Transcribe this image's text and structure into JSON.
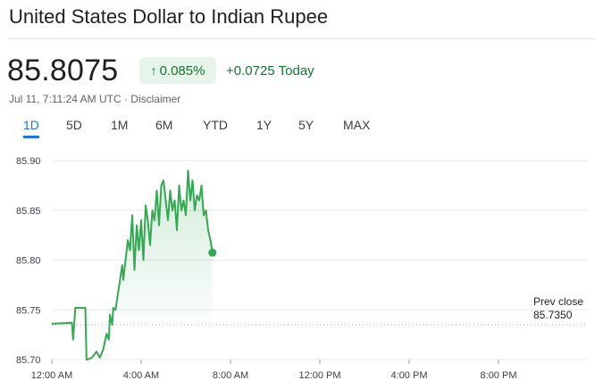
{
  "header": {
    "title": "United States Dollar to Indian Rupee"
  },
  "quote": {
    "price": "85.8075",
    "percent_change": "0.085%",
    "abs_change": "+0.0725",
    "period": "Today",
    "timestamp": "Jul 11, 7:11:24 AM UTC",
    "separator": " · ",
    "disclaimer": "Disclaimer"
  },
  "tabs": [
    {
      "label": "1D",
      "active": true
    },
    {
      "label": "5D",
      "active": false
    },
    {
      "label": "1M",
      "active": false
    },
    {
      "label": "6M",
      "active": false
    },
    {
      "label": "YTD",
      "active": false
    },
    {
      "label": "1Y",
      "active": false
    },
    {
      "label": "5Y",
      "active": false
    },
    {
      "label": "MAX",
      "active": false
    }
  ],
  "colors": {
    "up": "#137333",
    "line": "#34a853",
    "accent": "#1a73e8"
  },
  "icons": {
    "change_direction": "arrow-up-icon"
  },
  "chart_data": {
    "type": "line",
    "x_unit": "hours (UTC) since 12:00 AM",
    "xticks": [
      {
        "value": 0,
        "label": "12:00 AM"
      },
      {
        "value": 4,
        "label": "4:00 AM"
      },
      {
        "value": 8,
        "label": "8:00 AM"
      },
      {
        "value": 12,
        "label": "12:00 PM"
      },
      {
        "value": 16,
        "label": "4:00 PM"
      },
      {
        "value": 20,
        "label": "8:00 PM"
      }
    ],
    "xlim": [
      0,
      24
    ],
    "ylim": [
      85.7,
      85.9
    ],
    "yticks": [
      85.7,
      85.75,
      85.8,
      85.85,
      85.9
    ],
    "grid": true,
    "prev_close": {
      "label": "Prev close",
      "value": "85.7350",
      "numeric": 85.735
    },
    "series": {
      "x": [
        0,
        0.9,
        0.95,
        1.0,
        1.05,
        1.5,
        1.55,
        1.6,
        1.8,
        2.0,
        2.15,
        2.3,
        2.45,
        2.55,
        2.6,
        2.7,
        2.75,
        2.85,
        2.95,
        3.05,
        3.15,
        3.2,
        3.3,
        3.4,
        3.5,
        3.6,
        3.7,
        3.8,
        3.9,
        4.0,
        4.1,
        4.2,
        4.3,
        4.4,
        4.5,
        4.6,
        4.7,
        4.8,
        4.9,
        5.0,
        5.1,
        5.2,
        5.3,
        5.4,
        5.5,
        5.6,
        5.7,
        5.8,
        5.9,
        6.0,
        6.1,
        6.2,
        6.3,
        6.4,
        6.5,
        6.6,
        6.7,
        6.8,
        6.9,
        7.0,
        7.1,
        7.19
      ],
      "y": [
        85.736,
        85.737,
        85.72,
        85.735,
        85.752,
        85.752,
        85.7,
        85.7,
        85.702,
        85.708,
        85.702,
        85.71,
        85.726,
        85.72,
        85.745,
        85.735,
        85.752,
        85.75,
        85.765,
        85.78,
        85.795,
        85.78,
        85.8,
        85.82,
        85.81,
        85.845,
        85.79,
        85.835,
        85.81,
        85.84,
        85.8,
        85.855,
        85.84,
        85.815,
        85.85,
        85.84,
        85.87,
        85.835,
        85.875,
        85.88,
        85.86,
        85.84,
        85.87,
        85.85,
        85.86,
        85.83,
        85.875,
        85.85,
        85.86,
        85.845,
        85.89,
        85.86,
        85.88,
        85.85,
        85.865,
        85.86,
        85.875,
        85.845,
        85.85,
        85.83,
        85.82,
        85.8075
      ]
    }
  }
}
